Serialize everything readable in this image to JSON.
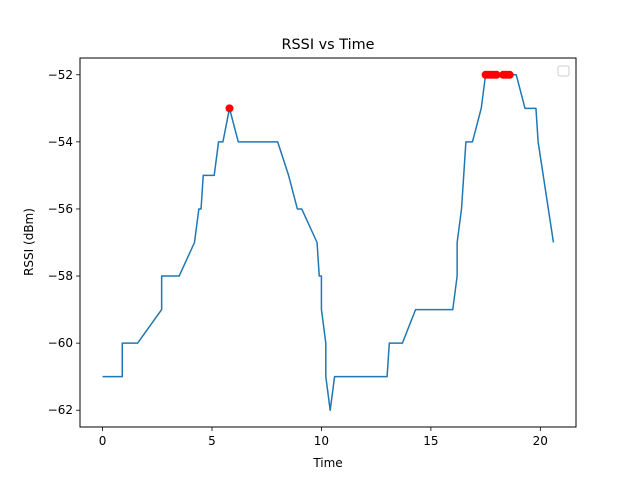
{
  "chart_data": {
    "type": "line",
    "title": "RSSI vs Time",
    "xlabel": "Time",
    "ylabel": "RSSI (dBm)",
    "xlim": [
      -1.03,
      21.63
    ],
    "ylim": [
      -62.5,
      -51.5
    ],
    "xticks": [
      0,
      5,
      10,
      15,
      20
    ],
    "yticks": [
      -62,
      -60,
      -58,
      -56,
      -54,
      -52
    ],
    "ytick_labels": [
      "−62",
      "−60",
      "−58",
      "−56",
      "−54",
      "−52"
    ],
    "grid": false,
    "legend": "upper right (empty)",
    "series": [
      {
        "type": "line",
        "color": "#1f77b4",
        "x": [
          0,
          0.9,
          0.9,
          1.6,
          2.7,
          2.7,
          3.5,
          4.2,
          4.4,
          4.5,
          4.6,
          4.8,
          5.1,
          5.3,
          5.5,
          5.8,
          6.2,
          7.3,
          8.0,
          8.5,
          8.9,
          9.1,
          9.8,
          9.9,
          10.0,
          10.0,
          10.2,
          10.2,
          10.4,
          10.6,
          10.6,
          13.0,
          13.1,
          13.4,
          13.7,
          14.3,
          15.0,
          16.0,
          16.2,
          16.2,
          16.4,
          16.6,
          16.9,
          17.3,
          17.5,
          18.5,
          18.9,
          19.3,
          19.8,
          19.9,
          20.6
        ],
        "y": [
          -61,
          -61,
          -60,
          -60,
          -59,
          -58,
          -58,
          -57,
          -56,
          -56,
          -55,
          -55,
          -55,
          -54,
          -54,
          -53,
          -54,
          -54,
          -54,
          -55,
          -56,
          -56,
          -57,
          -58,
          -58,
          -59,
          -60,
          -61,
          -62,
          -61,
          -61,
          -61,
          -60,
          -60,
          -60,
          -59,
          -59,
          -59,
          -58,
          -57,
          -56,
          -54,
          -54,
          -53,
          -52,
          -52,
          -52,
          -53,
          -53,
          -54,
          -57
        ]
      },
      {
        "type": "scatter",
        "color": "#ff0000",
        "x": [
          5.8,
          17.5,
          17.6,
          17.7,
          17.8,
          17.9,
          18.0,
          18.3,
          18.4,
          18.5,
          18.6
        ],
        "y": [
          -53,
          -52,
          -52,
          -52,
          -52,
          -52,
          -52,
          -52,
          -52,
          -52,
          -52
        ]
      }
    ]
  }
}
